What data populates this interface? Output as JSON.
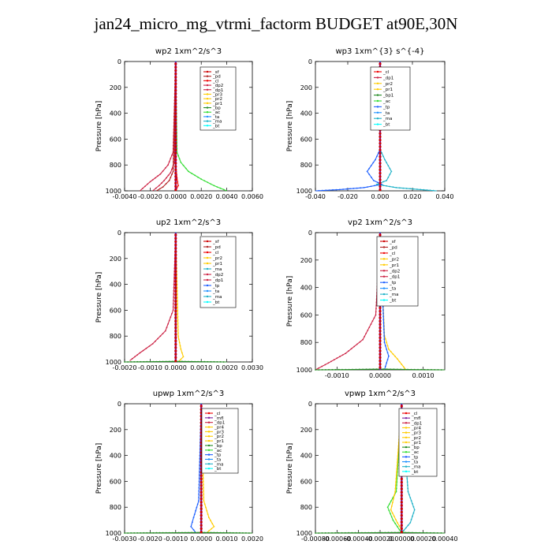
{
  "title": "jan24_micro_mg_vtrmi_factorm  BUDGET at90E,30N",
  "colors": {
    "sf": "#cc0000",
    "pd": "#b22222",
    "cl": "#ee0000",
    "dp": "#cc2244",
    "pr": "#ffcc00",
    "bp": "#228b22",
    "ac": "#33dd33",
    "tp": "#1e60ff",
    "ta": "#1e90ff",
    "ma": "#20b2c8",
    "bt": "#00ffff",
    "ms": "#7a1fa2",
    "total": "#6a0dad"
  },
  "chart_data": [
    {
      "type": "line",
      "title": "wp2   1xm^2/s^3",
      "ylabel": "Pressure  [hPa]",
      "xlim": [
        -0.004,
        0.006
      ],
      "ylim": [
        1000,
        0
      ],
      "xticks": [
        "-0.0040",
        "-0.0020",
        "0.0000",
        "0.0020",
        "0.0040",
        "0.0060"
      ],
      "yticks": [
        "0",
        "200",
        "400",
        "600",
        "800",
        "1000"
      ],
      "legend": [
        "_sf",
        "_pd",
        "_cl",
        "_dp2",
        "_dp1",
        "_pr3",
        "_pr2",
        "_pr1",
        "_bp",
        "_ac",
        "_ta",
        "_ma",
        "_bt"
      ],
      "series": [
        {
          "name": "_ac",
          "x": [
            0,
            0.0001,
            0.0004,
            0.001,
            0.002,
            0.003,
            0.004
          ],
          "y": [
            0,
            700,
            780,
            850,
            910,
            960,
            1000
          ]
        },
        {
          "name": "_dp1",
          "x": [
            0,
            -0.0002,
            -0.0006,
            -0.0012,
            -0.002,
            -0.0028
          ],
          "y": [
            0,
            700,
            800,
            870,
            930,
            1000
          ]
        },
        {
          "name": "_dp2",
          "x": [
            0,
            -0.0001,
            -0.0004,
            -0.0009,
            -0.0013,
            -0.0018
          ],
          "y": [
            0,
            780,
            860,
            920,
            960,
            1000
          ]
        },
        {
          "name": "_pd",
          "x": [
            0,
            -0.0002,
            -0.0005,
            -0.001,
            -0.0015
          ],
          "y": [
            0,
            850,
            920,
            970,
            1000
          ]
        },
        {
          "name": "_cl",
          "x": [
            0,
            0,
            0.0001,
            0.0002,
            0
          ],
          "y": [
            0,
            800,
            900,
            960,
            1000
          ]
        },
        {
          "name": "_bt",
          "x": [
            0,
            0,
            0
          ],
          "y": [
            0,
            500,
            1000
          ]
        }
      ]
    },
    {
      "type": "line",
      "title": "wp3   1xm^{3} s^{-4}",
      "ylabel": "Pressure  [hPa]",
      "xlim": [
        -0.04,
        0.04
      ],
      "ylim": [
        1000,
        0
      ],
      "xticks": [
        "-0.040",
        "-0.020",
        "0.000",
        "0.020",
        "0.040"
      ],
      "yticks": [
        "0",
        "200",
        "400",
        "600",
        "800",
        "1000"
      ],
      "legend": [
        "_cl",
        "_dp1",
        "_pr2",
        "_pr1",
        "_bp1",
        "_ac",
        "_tp",
        "_ta",
        "_ma",
        "_bt"
      ],
      "series": [
        {
          "name": "_tp",
          "x": [
            0,
            0,
            -0.003,
            -0.008,
            -0.004,
            0.001,
            -0.01,
            -0.025,
            -0.04
          ],
          "y": [
            0,
            680,
            760,
            850,
            920,
            950,
            975,
            990,
            1000
          ]
        },
        {
          "name": "_ma",
          "x": [
            0,
            0,
            0.003,
            0.007,
            0.004,
            -0.002,
            0.01,
            0.025,
            0.035
          ],
          "y": [
            0,
            680,
            760,
            850,
            920,
            950,
            975,
            990,
            1000
          ]
        },
        {
          "name": "_cl",
          "x": [
            0,
            0,
            0
          ],
          "y": [
            0,
            500,
            1000
          ]
        },
        {
          "name": "_bt",
          "x": [
            0,
            0,
            0
          ],
          "y": [
            0,
            500,
            1000
          ]
        }
      ]
    },
    {
      "type": "line",
      "title": "up2   1xm^2/s^3",
      "ylabel": "Pressure  [hPa]",
      "xlim": [
        -0.002,
        0.003
      ],
      "ylim": [
        1000,
        0
      ],
      "xticks": [
        "-0.0020",
        "-0.0010",
        "0.0000",
        "0.0010",
        "0.0020",
        "0.0030"
      ],
      "yticks": [
        "0",
        "200",
        "400",
        "600",
        "800",
        "1000"
      ],
      "legend": [
        "_sf",
        "_pd",
        "_cl",
        "_pr2",
        "_pr1",
        "_ma",
        "_dp2",
        "_dp1",
        "_tp",
        "_ta",
        "_ma",
        "_bt"
      ],
      "series": [
        {
          "name": "_dp1",
          "x": [
            0,
            -0.0001,
            -0.0004,
            -0.0009,
            -0.0014,
            -0.0018
          ],
          "y": [
            0,
            600,
            760,
            860,
            930,
            990
          ]
        },
        {
          "name": "_pr1",
          "x": [
            0,
            0.0001,
            0.0002,
            0.0003,
            0.0001
          ],
          "y": [
            0,
            800,
            900,
            960,
            1000
          ]
        },
        {
          "name": "_bp",
          "x": [
            -0.002,
            -0.001,
            0,
            0.001,
            0.002
          ],
          "y": [
            1000,
            998,
            996,
            998,
            1000
          ]
        },
        {
          "name": "_cl",
          "x": [
            0,
            0,
            0
          ],
          "y": [
            0,
            500,
            1000
          ]
        },
        {
          "name": "_bt",
          "x": [
            0,
            0,
            0
          ],
          "y": [
            0,
            500,
            1000
          ]
        }
      ]
    },
    {
      "type": "line",
      "title": "vp2   1xm^2/s^3",
      "ylabel": "Pressure  [hPa]",
      "xlim": [
        -0.0015,
        0.0015
      ],
      "ylim": [
        1000,
        0
      ],
      "xticks": [
        "-0.0010",
        "0.0000",
        "0.0010"
      ],
      "xtickvals": [
        -0.001,
        0,
        0.001
      ],
      "yticks": [
        "0",
        "200",
        "400",
        "600",
        "800",
        "1000"
      ],
      "legend": [
        "_sf",
        "_pd",
        "_cl",
        "_pr2",
        "_pr1",
        "_dp2",
        "_dp1",
        "_tp",
        "_ta",
        "_ma",
        "_bt"
      ],
      "series": [
        {
          "name": "_dp1",
          "x": [
            0,
            -0.0001,
            -0.0004,
            -0.0008,
            -0.0012,
            -0.0015
          ],
          "y": [
            0,
            600,
            780,
            880,
            950,
            1000
          ]
        },
        {
          "name": "_pr1",
          "x": [
            0,
            0.0001,
            0.0002,
            0.0004,
            0.0005,
            0.0006
          ],
          "y": [
            0,
            750,
            850,
            920,
            960,
            1000
          ]
        },
        {
          "name": "_tp",
          "x": [
            0,
            0.0001,
            0.0002,
            0.0001
          ],
          "y": [
            0,
            800,
            900,
            1000
          ]
        },
        {
          "name": "_bp",
          "x": [
            -0.0015,
            -0.0008,
            0,
            0.0008,
            0.0015
          ],
          "y": [
            1000,
            998,
            995,
            998,
            1000
          ]
        },
        {
          "name": "_cl",
          "x": [
            0,
            0,
            0
          ],
          "y": [
            0,
            500,
            1000
          ]
        },
        {
          "name": "_bt",
          "x": [
            0,
            0,
            0
          ],
          "y": [
            0,
            500,
            1000
          ]
        }
      ]
    },
    {
      "type": "line",
      "title": "upwp   1xm^2/s^3",
      "ylabel": "Pressure  [hPa]",
      "xlim": [
        -0.003,
        0.002
      ],
      "ylim": [
        1000,
        0
      ],
      "xticks": [
        "-0.0030",
        "-0.0020",
        "-0.0010",
        "0.0000",
        "0.0010",
        "0.0020"
      ],
      "yticks": [
        "0",
        "200",
        "400",
        "600",
        "800",
        "1000"
      ],
      "legend": [
        "_cl",
        "_mfl",
        "_dp1",
        "_pr4",
        "_pr3",
        "_pr2",
        "_pr1",
        "_bp",
        "_ac",
        "_tp",
        "_ta",
        "_ma",
        "_bt"
      ],
      "series": [
        {
          "name": "_tp",
          "x": [
            0,
            -0.0001,
            -0.0003,
            -0.0004,
            -0.0002
          ],
          "y": [
            0,
            750,
            880,
            950,
            1000
          ]
        },
        {
          "name": "_pr1",
          "x": [
            0,
            0.0001,
            0.0003,
            0.0005,
            0.0002
          ],
          "y": [
            0,
            750,
            880,
            950,
            1000
          ]
        },
        {
          "name": "_bp",
          "x": [
            -0.003,
            -0.0015,
            0,
            0.001,
            0.002
          ],
          "y": [
            1000,
            998,
            996,
            998,
            1000
          ]
        },
        {
          "name": "_cl",
          "x": [
            0,
            0,
            0
          ],
          "y": [
            0,
            500,
            1000
          ]
        },
        {
          "name": "_bt",
          "x": [
            0,
            0,
            0
          ],
          "y": [
            0,
            500,
            1000
          ]
        }
      ]
    },
    {
      "type": "line",
      "title": "vpwp   1xm^2/s^3",
      "ylabel": "Pressure  [hPa]",
      "xlim": [
        -0.0008,
        0.0004
      ],
      "ylim": [
        1000,
        0
      ],
      "xticks": [
        "-0.00080",
        "-0.00060",
        "-0.00040",
        "-0.00020",
        "0.00000",
        "0.00020",
        "0.00040"
      ],
      "yticks": [
        "0",
        "200",
        "400",
        "600",
        "800",
        "1000"
      ],
      "legend": [
        "_cl",
        "_mfl",
        "_dp1",
        "_pr4",
        "_pr3",
        "_pr2",
        "_pr1",
        "_bp",
        "_ac",
        "_tp",
        "_ta",
        "_ma",
        "_bt"
      ],
      "series": [
        {
          "name": "_ac",
          "x": [
            0,
            -5e-05,
            -0.00013,
            -8e-05,
            0
          ],
          "y": [
            0,
            680,
            800,
            900,
            1000
          ]
        },
        {
          "name": "_pr1",
          "x": [
            0,
            -6e-05,
            -0.0001,
            -4e-05,
            2e-05
          ],
          "y": [
            0,
            680,
            820,
            920,
            1000
          ]
        },
        {
          "name": "_ma",
          "x": [
            0,
            6e-05,
            0.00012,
            8e-05,
            0
          ],
          "y": [
            0,
            680,
            820,
            920,
            1000
          ]
        },
        {
          "name": "_bp",
          "x": [
            -0.0008,
            -0.0004,
            0,
            0.0002,
            0.0004
          ],
          "y": [
            1000,
            998,
            996,
            998,
            1000
          ]
        },
        {
          "name": "_cl",
          "x": [
            0,
            0,
            0
          ],
          "y": [
            0,
            500,
            1000
          ]
        },
        {
          "name": "_bt",
          "x": [
            0,
            0,
            0
          ],
          "y": [
            0,
            500,
            1000
          ]
        }
      ]
    }
  ]
}
